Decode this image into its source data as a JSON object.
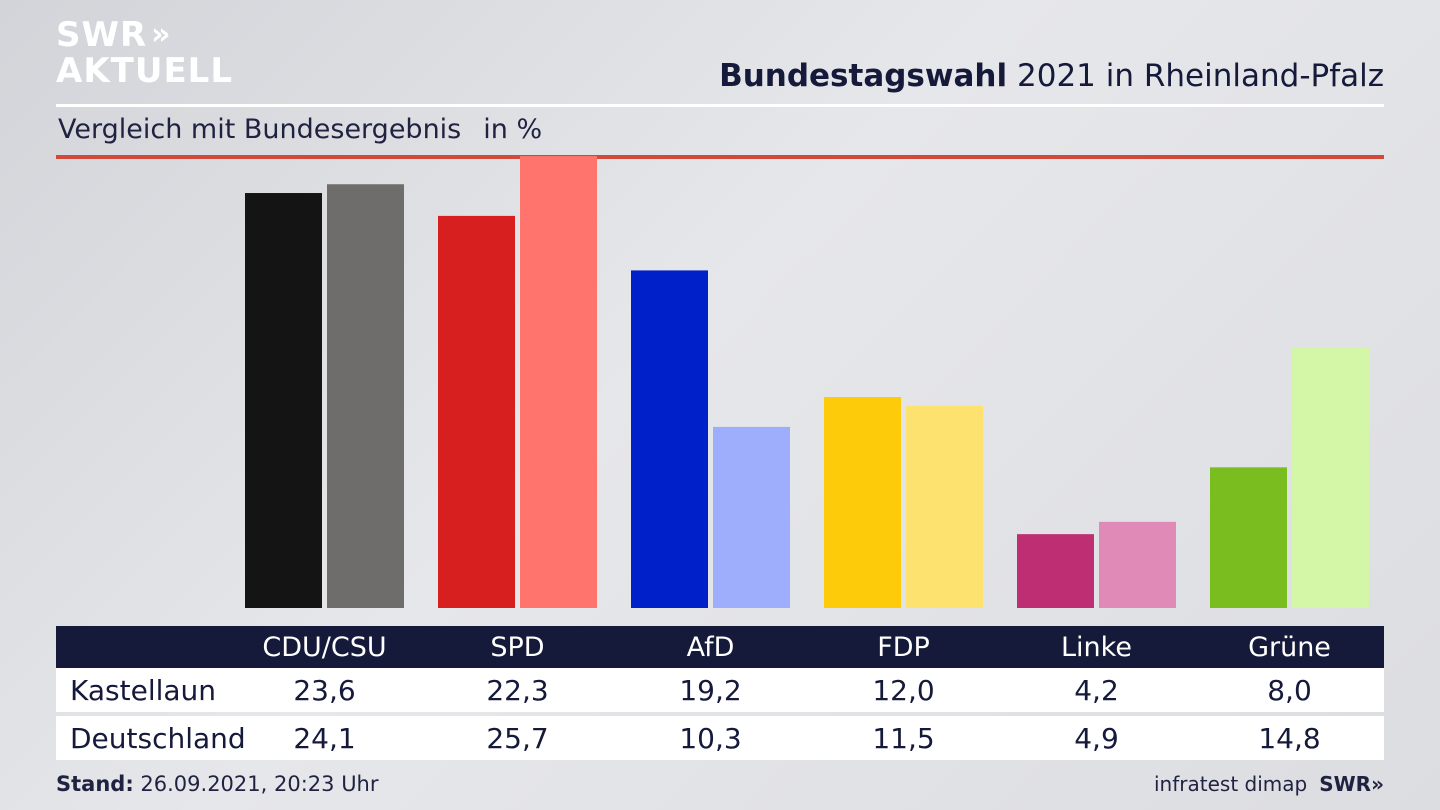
{
  "brand": {
    "line1": "SWR",
    "line2": "AKTUELL",
    "footer_logo": "SWR"
  },
  "header": {
    "title_bold": "Bundestagswahl",
    "title_rest": "2021 in Rheinland-Pfalz",
    "subtitle": "Vergleich mit Bundesergebnis",
    "unit": "in %"
  },
  "footer": {
    "stand_label": "Stand:",
    "stand_value": "26.09.2021, 20:23 Uhr",
    "source": "infratest dimap"
  },
  "colors": {
    "background": "#dfe0e4",
    "navy": "#15193a",
    "red_rule": "#d2493b",
    "parties": [
      {
        "primary": "#141414",
        "secondary": "#6e6d6b"
      },
      {
        "primary": "#d81f1f",
        "secondary": "#ff756e"
      },
      {
        "primary": "#0021c9",
        "secondary": "#9eaefd"
      },
      {
        "primary": "#fecb0a",
        "secondary": "#fde270"
      },
      {
        "primary": "#bd2f72",
        "secondary": "#e08ab8"
      },
      {
        "primary": "#79bd1f",
        "secondary": "#d3f6a7"
      }
    ]
  },
  "chart_data": {
    "type": "bar",
    "categories": [
      "CDU/CSU",
      "SPD",
      "AfD",
      "FDP",
      "Linke",
      "Grüne"
    ],
    "series": [
      {
        "name": "Kastellaun",
        "values": [
          "23,6",
          "22,3",
          "19,2",
          "12,0",
          "4,2",
          "8,0"
        ]
      },
      {
        "name": "Deutschland",
        "values": [
          "24,1",
          "25,7",
          "10,3",
          "11,5",
          "4,9",
          "14,8"
        ]
      }
    ],
    "ylim": [
      0,
      26.5
    ],
    "grid": false,
    "legend": "table-below"
  }
}
